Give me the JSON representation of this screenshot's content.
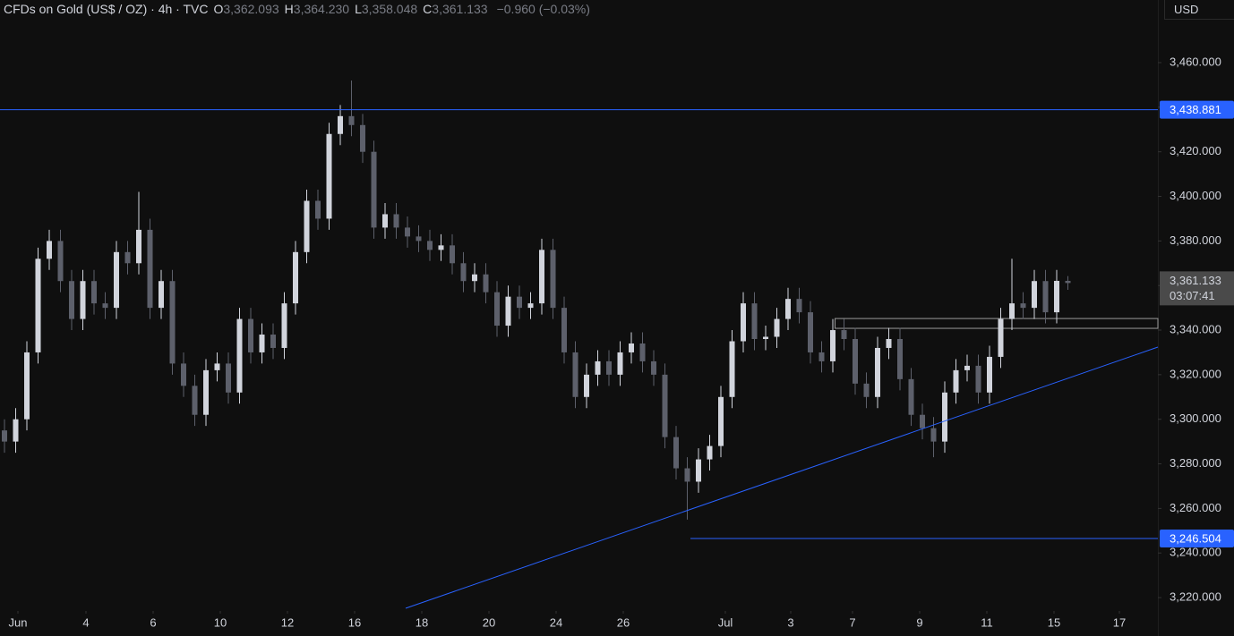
{
  "chart_data": {
    "type": "candlestick",
    "title": "CFDs on Gold (US$ / OZ) · 4h · TVC",
    "ohlc_header": [
      {
        "key": "O",
        "value": "3,362.093"
      },
      {
        "key": "H",
        "value": "3,364.230"
      },
      {
        "key": "L",
        "value": "3,358.048"
      },
      {
        "key": "C",
        "value": "3,361.133"
      }
    ],
    "change": "−0.960 (−0.03%)",
    "currency": "USD",
    "up_color": "#d1d4dc",
    "down_color": "#5d606b",
    "open": [
      3295,
      3290,
      3300,
      3330,
      3372,
      3380,
      3362,
      3345,
      3362,
      3352,
      3350,
      3375,
      3370,
      3385,
      3350,
      3362,
      3325,
      3315,
      3302,
      3322,
      3325,
      3312,
      3345,
      3330,
      3338,
      3332,
      3352,
      3375,
      3398,
      3390,
      3428,
      3436,
      3432,
      3420,
      3386,
      3392,
      3386,
      3382,
      3380,
      3376,
      3378,
      3370,
      3362,
      3365,
      3357,
      3342,
      3355,
      3350,
      3352,
      3376,
      3350,
      3330,
      3310,
      3320,
      3326,
      3320,
      3330,
      3334,
      3326,
      3320,
      3292,
      3278,
      3272,
      3282,
      3288,
      3310,
      3335,
      3352,
      3336,
      3337,
      3345,
      3354,
      3348,
      3330,
      3326,
      3340,
      3336,
      3316,
      3310,
      3332,
      3336,
      3318,
      3302,
      3296,
      3290,
      3312,
      3322,
      3324,
      3312,
      3328,
      3345,
      3352,
      3350,
      3362,
      3348,
      3362.093
    ],
    "high": [
      3300,
      3305,
      3335,
      3377,
      3385,
      3385,
      3367,
      3367,
      3367,
      3357,
      3380,
      3380,
      3402,
      3390,
      3367,
      3367,
      3330,
      3320,
      3327,
      3330,
      3330,
      3350,
      3350,
      3343,
      3343,
      3357,
      3380,
      3403,
      3403,
      3433,
      3441,
      3452,
      3437,
      3425,
      3397,
      3397,
      3391,
      3387,
      3385,
      3383,
      3383,
      3375,
      3370,
      3370,
      3362,
      3360,
      3360,
      3357,
      3381,
      3381,
      3355,
      3335,
      3325,
      3331,
      3331,
      3335,
      3339,
      3339,
      3331,
      3325,
      3297,
      3283,
      3287,
      3293,
      3315,
      3340,
      3357,
      3357,
      3342,
      3350,
      3359,
      3359,
      3353,
      3335,
      3345,
      3345,
      3341,
      3321,
      3337,
      3341,
      3341,
      3323,
      3307,
      3301,
      3317,
      3327,
      3329,
      3329,
      3333,
      3350,
      3372,
      3357,
      3367,
      3367,
      3367,
      3364.23
    ],
    "low": [
      3285,
      3285,
      3295,
      3325,
      3367,
      3357,
      3340,
      3340,
      3347,
      3345,
      3345,
      3365,
      3365,
      3345,
      3345,
      3320,
      3310,
      3297,
      3297,
      3317,
      3307,
      3307,
      3325,
      3325,
      3327,
      3327,
      3347,
      3370,
      3385,
      3385,
      3423,
      3427,
      3415,
      3381,
      3381,
      3381,
      3377,
      3375,
      3371,
      3371,
      3365,
      3357,
      3357,
      3352,
      3337,
      3337,
      3345,
      3345,
      3347,
      3345,
      3325,
      3305,
      3305,
      3315,
      3315,
      3315,
      3325,
      3321,
      3315,
      3287,
      3273,
      3255,
      3267,
      3277,
      3283,
      3305,
      3330,
      3331,
      3331,
      3332,
      3340,
      3343,
      3325,
      3321,
      3321,
      3331,
      3311,
      3305,
      3305,
      3327,
      3313,
      3297,
      3291,
      3283,
      3285,
      3307,
      3317,
      3307,
      3307,
      3323,
      3340,
      3345,
      3345,
      3343,
      3343,
      3358.048
    ],
    "close": [
      3290,
      3300,
      3330,
      3372,
      3380,
      3362,
      3345,
      3362,
      3352,
      3350,
      3375,
      3370,
      3385,
      3350,
      3362,
      3325,
      3315,
      3302,
      3322,
      3325,
      3312,
      3345,
      3330,
      3338,
      3332,
      3352,
      3375,
      3398,
      3390,
      3428,
      3436,
      3432,
      3420,
      3386,
      3392,
      3386,
      3382,
      3380,
      3376,
      3378,
      3370,
      3362,
      3365,
      3357,
      3342,
      3355,
      3350,
      3352,
      3376,
      3350,
      3330,
      3310,
      3320,
      3326,
      3320,
      3330,
      3334,
      3326,
      3320,
      3292,
      3278,
      3272,
      3282,
      3288,
      3310,
      3335,
      3352,
      3336,
      3337,
      3345,
      3354,
      3348,
      3330,
      3326,
      3340,
      3336,
      3316,
      3310,
      3332,
      3336,
      3318,
      3302,
      3296,
      3290,
      3312,
      3322,
      3324,
      3312,
      3328,
      3345,
      3352,
      3350,
      3362,
      3348,
      3362.093,
      3361.133
    ],
    "xlim": [
      -0.4,
      103.04
    ],
    "xticks": [
      {
        "value": 1.2,
        "label": "Jun"
      },
      {
        "value": 7.28,
        "label": "4"
      },
      {
        "value": 13.28,
        "label": "6"
      },
      {
        "value": 19.28,
        "label": "10"
      },
      {
        "value": 25.28,
        "label": "12"
      },
      {
        "value": 31.28,
        "label": "16"
      },
      {
        "value": 37.28,
        "label": "18"
      },
      {
        "value": 43.28,
        "label": "20"
      },
      {
        "value": 49.28,
        "label": "24"
      },
      {
        "value": 55.28,
        "label": "26"
      },
      {
        "value": 64.4,
        "label": "Jul"
      },
      {
        "value": 70.24,
        "label": "3"
      },
      {
        "value": 75.76,
        "label": "7"
      },
      {
        "value": 81.76,
        "label": "9"
      },
      {
        "value": 87.76,
        "label": "11"
      },
      {
        "value": 93.76,
        "label": "15"
      },
      {
        "value": 99.6,
        "label": "17"
      }
    ],
    "ylim": [
      3214,
      3488.1
    ],
    "yticks": [
      {
        "value": 3220,
        "label": "3,220.000"
      },
      {
        "value": 3240,
        "label": "3,240.000"
      },
      {
        "value": 3260,
        "label": "3,260.000"
      },
      {
        "value": 3280,
        "label": "3,280.000"
      },
      {
        "value": 3300,
        "label": "3,300.000"
      },
      {
        "value": 3320,
        "label": "3,320.000"
      },
      {
        "value": 3340,
        "label": "3,340.000"
      },
      {
        "value": 3360,
        "label": "3,360.000"
      },
      {
        "value": 3380,
        "label": "3,380.000"
      },
      {
        "value": 3400,
        "label": "3,400.000"
      },
      {
        "value": 3420,
        "label": "3,420.000"
      },
      {
        "value": 3440,
        "label": "3,440.000"
      },
      {
        "value": 3460,
        "label": "3,460.000"
      }
    ],
    "hlines": [
      {
        "value": 3438.881,
        "label": "3,438.881",
        "x_start": -0.4,
        "color": "#2962ff"
      },
      {
        "value": 3246.504,
        "label": "3,246.504",
        "x_start": 61.28,
        "color": "#2962ff"
      }
    ],
    "trendline": {
      "x": [
        35.84,
        103.04
      ],
      "y": [
        3215.2,
        3332.4
      ],
      "color": "#2962ff"
    },
    "zone": {
      "x": [
        74.2,
        103.04
      ],
      "y": [
        3340.8,
        3345.2
      ]
    },
    "last_price": {
      "value": 3361.133,
      "label": "3,361.133",
      "countdown": "03:07:41"
    }
  }
}
